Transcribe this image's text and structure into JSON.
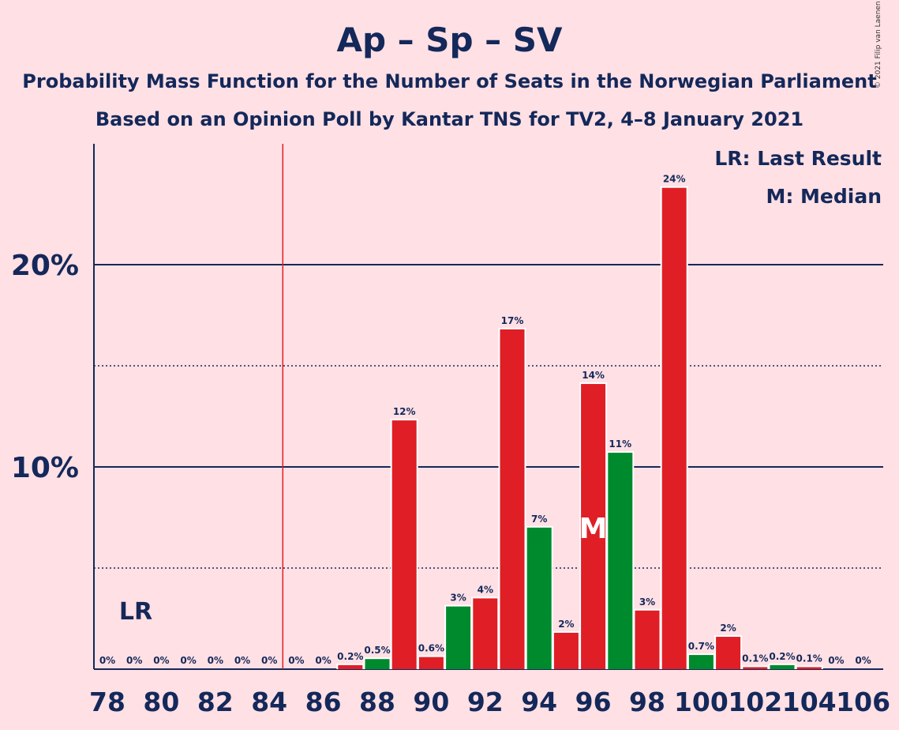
{
  "title": "Ap – Sp – SV",
  "subtitle_line1": "Probability Mass Function for the Number of Seats in the Norwegian Parliament",
  "subtitle_line2": "Based on an Opinion Poll by Kantar TNS for TV2, 4–8 January 2021",
  "copyright": "© 2021 Filip van Laenen",
  "legend": {
    "last_result": "LR: Last Result",
    "median": "M: Median"
  },
  "colors": {
    "red": "#E01E26",
    "green": "#008A2E",
    "navy": "#14285A",
    "background": "#FFE0E4"
  },
  "chart_data": {
    "type": "bar",
    "x": [
      78,
      79,
      80,
      81,
      82,
      83,
      84,
      85,
      86,
      87,
      88,
      89,
      90,
      91,
      92,
      93,
      94,
      95,
      96,
      97,
      98,
      99,
      100,
      101,
      102,
      103,
      104,
      105,
      106
    ],
    "values": [
      0,
      0,
      0,
      0,
      0,
      0,
      0,
      0,
      0,
      0.2,
      0.5,
      12.3,
      0.6,
      3.1,
      3.5,
      16.8,
      7.0,
      1.8,
      14.1,
      10.7,
      2.9,
      23.8,
      0.7,
      1.6,
      0.1,
      0.2,
      0.1,
      0,
      0
    ],
    "labels": [
      "0%",
      "0%",
      "0%",
      "0%",
      "0%",
      "0%",
      "0%",
      "0%",
      "0%",
      "0.2%",
      "0.5%",
      "12%",
      "0.6%",
      "3%",
      "4%",
      "17%",
      "7%",
      "2%",
      "14%",
      "11%",
      "3%",
      "24%",
      "0.7%",
      "2%",
      "0.1%",
      "0.2%",
      "0.1%",
      "0%",
      "0%"
    ],
    "bar_colors": [
      "red",
      "red",
      "red",
      "red",
      "red",
      "red",
      "red",
      "red",
      "red",
      "red",
      "green",
      "red",
      "red",
      "green",
      "red",
      "red",
      "green",
      "red",
      "red",
      "green",
      "red",
      "red",
      "green",
      "red",
      "red",
      "green",
      "red",
      "red",
      "red"
    ],
    "xticks": [
      "78",
      "80",
      "82",
      "84",
      "86",
      "88",
      "90",
      "92",
      "94",
      "96",
      "98",
      "100",
      "102",
      "104",
      "106"
    ],
    "yticks": [
      "10%",
      "20%"
    ],
    "ylim": [
      0,
      26
    ],
    "last_result_seat": 85,
    "last_result_label": "LR",
    "median_seat": 96,
    "median_label": "M"
  }
}
